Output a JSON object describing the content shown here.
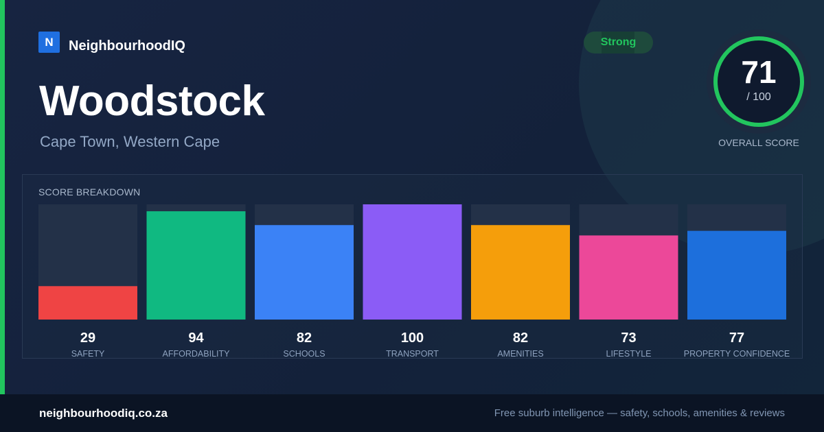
{
  "brand": {
    "logo_letter": "N",
    "name": "NeighbourhoodIQ"
  },
  "suburb": {
    "name": "Woodstock",
    "location": "Cape Town, Western Cape"
  },
  "badge": "Strong",
  "overall": {
    "value": "71",
    "max": "/ 100",
    "label": "OVERALL SCORE",
    "score": 71,
    "out_of": 100
  },
  "colors": {
    "accent": "#22c55e",
    "brand": "#1f6fe0",
    "track": "#233148"
  },
  "chart_data": {
    "type": "bar",
    "title": "SCORE BREAKDOWN",
    "categories": [
      "SAFETY",
      "AFFORDABILITY",
      "SCHOOLS",
      "TRANSPORT",
      "AMENITIES",
      "LIFESTYLE",
      "PROPERTY CONFIDENCE"
    ],
    "values": [
      29,
      94,
      82,
      100,
      82,
      73,
      77
    ],
    "colors": [
      "#ef4444",
      "#10b981",
      "#3b82f6",
      "#8b5cf6",
      "#f59e0b",
      "#ec4899",
      "#1d6fdc"
    ],
    "ylim": [
      0,
      100
    ],
    "grid": false
  },
  "footer": {
    "url": "neighbourhoodiq.co.za",
    "tagline": "Free suburb intelligence — safety, schools, amenities & reviews"
  }
}
